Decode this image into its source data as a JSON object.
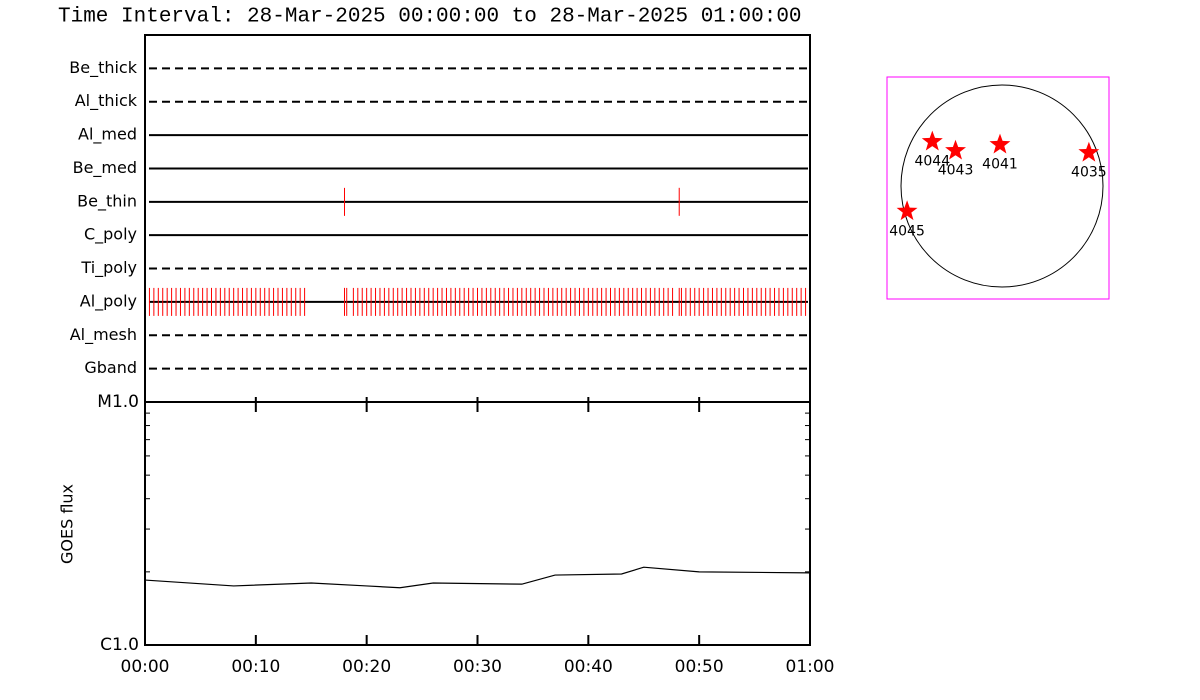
{
  "chart_data": [
    {
      "type": "timeline",
      "title": "Time Interval: 28-Mar-2025 00:00:00 to 28-Mar-2025 01:00:00",
      "categories": [
        "Be_thick",
        "Al_thick",
        "Al_med",
        "Be_med",
        "Be_thin",
        "C_poly",
        "Ti_poly",
        "Al_poly",
        "Al_mesh",
        "Gband"
      ],
      "line_styles": [
        "dashed",
        "dashed",
        "solid",
        "solid",
        "solid",
        "solid",
        "dashed",
        "solid",
        "dashed",
        "dashed"
      ],
      "event_color": "#ff0000",
      "xlim": [
        0,
        60
      ],
      "events": [
        [],
        [],
        [],
        [],
        [
          18.0,
          48.2
        ],
        [],
        [],
        [
          0.4,
          0.8,
          1.2,
          1.6,
          2.0,
          2.4,
          2.8,
          3.2,
          3.6,
          4.0,
          4.4,
          4.8,
          5.2,
          5.6,
          6.0,
          6.4,
          6.8,
          7.2,
          7.6,
          8.0,
          8.4,
          8.8,
          9.2,
          9.6,
          10.0,
          10.4,
          10.8,
          11.2,
          11.6,
          12.0,
          12.4,
          12.8,
          13.2,
          13.6,
          14.0,
          14.4,
          18.0,
          18.2,
          18.8,
          19.2,
          19.6,
          20.0,
          20.4,
          20.8,
          21.2,
          21.6,
          22.0,
          22.4,
          22.8,
          23.2,
          23.6,
          24.0,
          24.4,
          24.8,
          25.2,
          25.6,
          26.0,
          26.4,
          26.8,
          27.2,
          27.6,
          28.0,
          28.4,
          28.8,
          29.2,
          29.6,
          30.0,
          30.4,
          30.8,
          31.2,
          31.6,
          32.0,
          32.4,
          32.8,
          33.2,
          33.6,
          34.0,
          34.4,
          34.8,
          35.2,
          35.6,
          36.0,
          36.4,
          36.8,
          37.2,
          37.6,
          38.0,
          38.4,
          38.8,
          39.2,
          39.6,
          40.0,
          40.4,
          40.8,
          41.2,
          41.6,
          42.0,
          42.4,
          42.8,
          43.2,
          43.6,
          44.0,
          44.4,
          44.8,
          45.2,
          45.6,
          46.0,
          46.4,
          46.8,
          47.2,
          47.6,
          48.2,
          48.4,
          48.8,
          49.2,
          49.6,
          50.0,
          50.4,
          50.8,
          51.2,
          51.6,
          52.0,
          52.4,
          52.8,
          53.2,
          53.6,
          54.0,
          54.4,
          54.8,
          55.2,
          55.6,
          56.0,
          56.4,
          56.8,
          57.2,
          57.6,
          58.0,
          58.4,
          58.8,
          59.2,
          59.6
        ],
        [],
        []
      ]
    },
    {
      "type": "line",
      "ylabel": "GOES flux",
      "x": [
        0,
        8,
        15,
        20,
        23,
        26,
        34,
        37,
        43,
        45,
        50,
        60
      ],
      "values": [
        1.85e-06,
        1.75e-06,
        1.8e-06,
        1.75e-06,
        1.72e-06,
        1.8e-06,
        1.78e-06,
        1.94e-06,
        1.96e-06,
        2.09e-06,
        2e-06,
        1.98e-06
      ],
      "color": "#000000",
      "log": true,
      "xlim": [
        0,
        60
      ],
      "xticks": [
        {
          "value": 0,
          "label": "00:00"
        },
        {
          "value": 10,
          "label": "00:10"
        },
        {
          "value": 20,
          "label": "00:20"
        },
        {
          "value": 30,
          "label": "00:30"
        },
        {
          "value": 40,
          "label": "00:40"
        },
        {
          "value": 50,
          "label": "00:50"
        },
        {
          "value": 60,
          "label": "01:00"
        }
      ],
      "ylim": [
        1e-06,
        1e-05
      ],
      "yticks": [
        {
          "value": 1e-06,
          "label": "C1.0"
        },
        {
          "value": 1e-05,
          "label": "M1.0"
        }
      ],
      "yminorticks": [
        2e-06,
        3e-06,
        4e-06,
        5e-06,
        6e-06,
        7e-06,
        8e-06,
        9e-06
      ]
    },
    {
      "type": "disk",
      "labels": [
        "4044",
        "4043",
        "4041",
        "4035",
        "4045"
      ],
      "x": [
        -0.69,
        -0.46,
        -0.02,
        0.86,
        -0.94
      ],
      "y": [
        0.44,
        0.35,
        0.41,
        0.33,
        -0.25
      ],
      "color": "#ff0000",
      "frame_color": "#ff00ff"
    }
  ]
}
